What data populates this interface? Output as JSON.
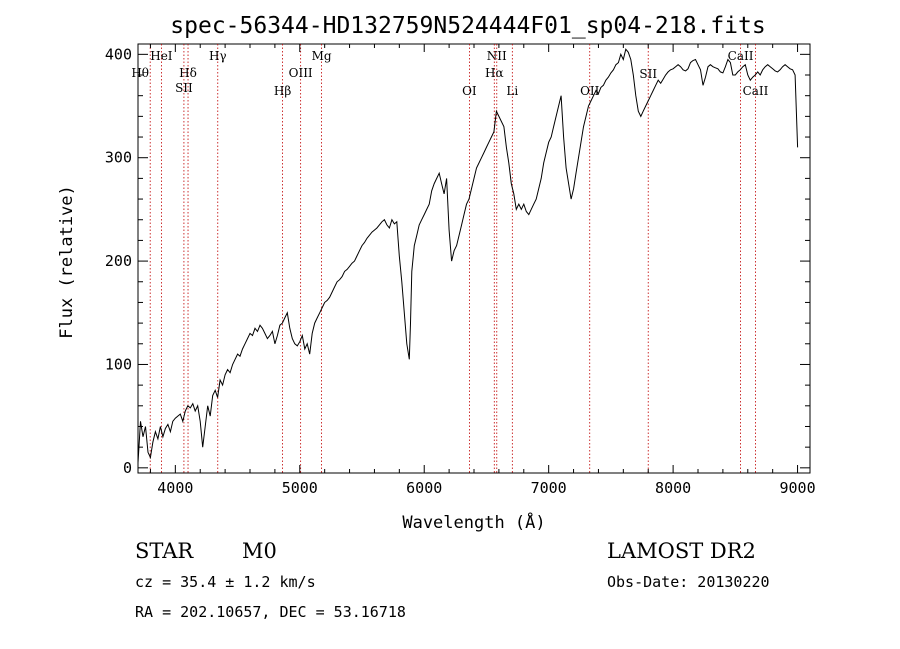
{
  "chart_data": {
    "type": "line",
    "title": "spec-56344-HD132759N524444F01_sp04-218.fits",
    "xlabel": "Wavelength (Å)",
    "ylabel": "Flux (relative)",
    "xlim": [
      3700,
      9100
    ],
    "ylim": [
      -5,
      410
    ],
    "x_ticks": [
      4000,
      5000,
      6000,
      7000,
      8000,
      9000
    ],
    "y_ticks": [
      0,
      100,
      200,
      300,
      400
    ],
    "grid": false,
    "series": [
      {
        "color": "#000000",
        "x": [
          3700,
          3720,
          3740,
          3760,
          3780,
          3800,
          3820,
          3840,
          3860,
          3880,
          3900,
          3920,
          3940,
          3960,
          3980,
          4000,
          4020,
          4040,
          4060,
          4080,
          4100,
          4120,
          4140,
          4160,
          4180,
          4200,
          4220,
          4240,
          4260,
          4280,
          4300,
          4320,
          4340,
          4360,
          4380,
          4400,
          4420,
          4440,
          4460,
          4480,
          4500,
          4520,
          4540,
          4560,
          4580,
          4600,
          4620,
          4640,
          4660,
          4680,
          4700,
          4720,
          4740,
          4760,
          4780,
          4800,
          4820,
          4840,
          4860,
          4880,
          4900,
          4920,
          4940,
          4960,
          4980,
          5000,
          5020,
          5040,
          5060,
          5080,
          5100,
          5120,
          5140,
          5160,
          5180,
          5200,
          5220,
          5240,
          5260,
          5280,
          5300,
          5320,
          5340,
          5360,
          5380,
          5400,
          5420,
          5440,
          5460,
          5480,
          5500,
          5520,
          5540,
          5560,
          5580,
          5600,
          5620,
          5640,
          5660,
          5680,
          5700,
          5720,
          5740,
          5760,
          5780,
          5800,
          5820,
          5840,
          5860,
          5880,
          5890,
          5900,
          5920,
          5940,
          5960,
          5980,
          6000,
          6020,
          6040,
          6060,
          6080,
          6100,
          6120,
          6140,
          6160,
          6180,
          6200,
          6220,
          6240,
          6260,
          6280,
          6300,
          6320,
          6340,
          6360,
          6380,
          6400,
          6420,
          6440,
          6460,
          6480,
          6500,
          6520,
          6540,
          6560,
          6580,
          6600,
          6620,
          6640,
          6660,
          6680,
          6700,
          6720,
          6740,
          6760,
          6780,
          6800,
          6820,
          6840,
          6860,
          6880,
          6900,
          6920,
          6940,
          6960,
          6980,
          7000,
          7020,
          7040,
          7060,
          7080,
          7100,
          7120,
          7140,
          7160,
          7180,
          7200,
          7220,
          7240,
          7260,
          7280,
          7300,
          7320,
          7340,
          7360,
          7380,
          7400,
          7420,
          7440,
          7460,
          7480,
          7500,
          7520,
          7540,
          7560,
          7580,
          7600,
          7620,
          7640,
          7660,
          7680,
          7700,
          7720,
          7740,
          7760,
          7780,
          7800,
          7820,
          7840,
          7860,
          7880,
          7900,
          7920,
          7940,
          7960,
          7980,
          8000,
          8020,
          8040,
          8060,
          8080,
          8100,
          8120,
          8140,
          8160,
          8180,
          8200,
          8220,
          8240,
          8260,
          8280,
          8300,
          8320,
          8340,
          8360,
          8380,
          8400,
          8420,
          8440,
          8460,
          8480,
          8500,
          8520,
          8540,
          8560,
          8580,
          8600,
          8620,
          8640,
          8660,
          8680,
          8700,
          8720,
          8740,
          8760,
          8780,
          8800,
          8820,
          8840,
          8860,
          8880,
          8900,
          8920,
          8940,
          8960,
          8980,
          9000
        ],
        "y": [
          5,
          45,
          30,
          40,
          15,
          10,
          25,
          35,
          28,
          40,
          30,
          38,
          42,
          35,
          45,
          48,
          50,
          52,
          45,
          55,
          60,
          58,
          62,
          55,
          60,
          45,
          20,
          40,
          60,
          50,
          70,
          75,
          68,
          85,
          80,
          90,
          95,
          92,
          100,
          105,
          110,
          108,
          115,
          120,
          125,
          130,
          128,
          135,
          132,
          138,
          135,
          130,
          125,
          128,
          132,
          120,
          128,
          138,
          140,
          145,
          150,
          135,
          125,
          120,
          118,
          122,
          128,
          115,
          120,
          110,
          130,
          140,
          145,
          150,
          155,
          160,
          162,
          165,
          170,
          175,
          180,
          182,
          185,
          190,
          192,
          195,
          198,
          200,
          205,
          210,
          215,
          218,
          222,
          225,
          228,
          230,
          232,
          235,
          238,
          240,
          235,
          232,
          240,
          236,
          238,
          205,
          180,
          150,
          120,
          105,
          140,
          190,
          215,
          225,
          235,
          240,
          245,
          250,
          255,
          268,
          275,
          280,
          285,
          275,
          265,
          280,
          230,
          200,
          210,
          215,
          225,
          235,
          245,
          255,
          260,
          270,
          280,
          290,
          295,
          300,
          305,
          310,
          315,
          320,
          325,
          345,
          340,
          335,
          330,
          310,
          295,
          275,
          265,
          250,
          255,
          250,
          255,
          248,
          245,
          250,
          255,
          260,
          270,
          280,
          295,
          305,
          315,
          320,
          330,
          340,
          350,
          360,
          320,
          290,
          275,
          260,
          270,
          285,
          300,
          315,
          330,
          340,
          350,
          355,
          360,
          365,
          362,
          368,
          370,
          375,
          378,
          382,
          385,
          390,
          392,
          400,
          395,
          405,
          402,
          395,
          380,
          360,
          345,
          340,
          345,
          350,
          355,
          360,
          365,
          370,
          375,
          372,
          376,
          380,
          383,
          385,
          386,
          388,
          390,
          388,
          385,
          384,
          386,
          392,
          394,
          395,
          390,
          385,
          370,
          378,
          388,
          390,
          388,
          387,
          386,
          383,
          382,
          388,
          395,
          392,
          380,
          380,
          383,
          385,
          388,
          390,
          380,
          375,
          378,
          380,
          383,
          380,
          385,
          388,
          390,
          388,
          386,
          384,
          383,
          385,
          388,
          390,
          388,
          386,
          385,
          380,
          310
        ]
      }
    ],
    "line_markers": [
      {
        "label": "HeI",
        "x": 3888
      },
      {
        "label": "Hθ",
        "x": 3798
      },
      {
        "label": "Hδ",
        "x": 4102
      },
      {
        "label": "SII",
        "x": 4069
      },
      {
        "label": "Hγ",
        "x": 4341
      },
      {
        "label": "Hβ",
        "x": 4862
      },
      {
        "label": "OIII",
        "x": 5007
      },
      {
        "label": "Mg",
        "x": 5175
      },
      {
        "label": "OI",
        "x": 6363
      },
      {
        "label": "NII",
        "x": 6583
      },
      {
        "label": "Hα",
        "x": 6563
      },
      {
        "label": "Li",
        "x": 6708
      },
      {
        "label": "OII",
        "x": 7330
      },
      {
        "label": "SII",
        "x": 7800
      },
      {
        "label": "CaII",
        "x": 8542
      },
      {
        "label": "CaII",
        "x": 8662
      }
    ]
  },
  "info": {
    "class": "STAR",
    "subclass": "M0",
    "survey": "LAMOST DR2",
    "cz": "cz = 35.4 ± 1.2 km/s",
    "obs_date": "Obs-Date: 20130220",
    "radec": "RA = 202.10657, DEC =  53.16718"
  }
}
